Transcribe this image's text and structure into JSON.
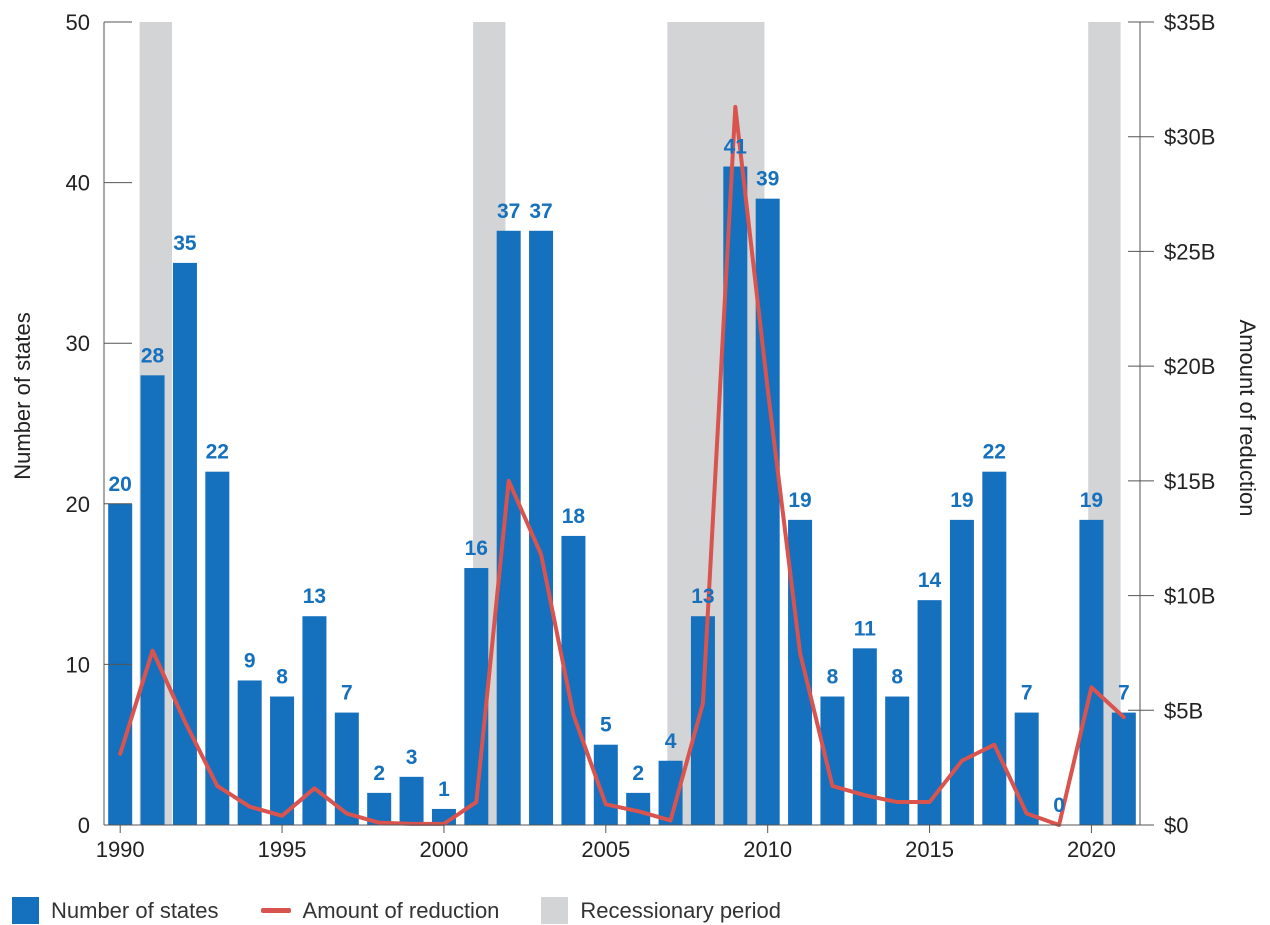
{
  "colors": {
    "bars": "#1570bd",
    "line": "#d9534f",
    "recession": "#d3d4d6",
    "label": "#1570bd"
  },
  "legend": {
    "items": [
      {
        "label": "Number of states",
        "kind": "box",
        "color": "#1570bd"
      },
      {
        "label": "Amount of reduction",
        "kind": "line",
        "color": "#d9534f"
      },
      {
        "label": "Recessionary period",
        "kind": "box",
        "color": "#d3d4d6"
      }
    ]
  },
  "chart_data": {
    "type": "bar",
    "title": "",
    "xlabel": "",
    "ylabel": "Number of states",
    "y2label": "Amount of reduction",
    "x": [
      1990,
      1991,
      1992,
      1993,
      1994,
      1995,
      1996,
      1997,
      1998,
      1999,
      2000,
      2001,
      2002,
      2003,
      2004,
      2005,
      2006,
      2007,
      2008,
      2009,
      2010,
      2011,
      2012,
      2013,
      2014,
      2015,
      2016,
      2017,
      2018,
      2019,
      2020,
      2021
    ],
    "xticks": [
      1990,
      1995,
      2000,
      2005,
      2010,
      2015,
      2020
    ],
    "ylim": [
      0,
      50
    ],
    "yticks": [
      0,
      10,
      20,
      30,
      40,
      50
    ],
    "y2lim": [
      0,
      35
    ],
    "y2ticks": [
      0,
      5,
      10,
      15,
      20,
      25,
      30,
      35
    ],
    "y2ticklabels": [
      "$0",
      "$5B",
      "$10B",
      "$15B",
      "$20B",
      "$25B",
      "$30B",
      "$35B"
    ],
    "recessions": [
      [
        1990.6,
        1991.6
      ],
      [
        2000.9,
        2001.9
      ],
      [
        2006.9,
        2009.9
      ],
      [
        2019.9,
        2020.9
      ]
    ],
    "series": [
      {
        "name": "Number of states",
        "type": "bar",
        "axis": "left",
        "values": [
          20,
          28,
          35,
          22,
          9,
          8,
          13,
          7,
          2,
          3,
          1,
          16,
          37,
          37,
          18,
          5,
          2,
          4,
          13,
          41,
          39,
          19,
          8,
          11,
          8,
          14,
          19,
          22,
          7,
          0,
          19,
          7
        ]
      },
      {
        "name": "Amount of reduction",
        "type": "line",
        "axis": "right",
        "values": [
          3.1,
          7.6,
          4.5,
          1.7,
          0.8,
          0.4,
          1.6,
          0.5,
          0.1,
          0.05,
          0.05,
          1.0,
          15.0,
          11.8,
          4.8,
          0.9,
          0.6,
          0.2,
          5.3,
          31.3,
          19.0,
          7.5,
          1.7,
          1.3,
          1.0,
          1.0,
          2.8,
          3.5,
          0.5,
          0.0,
          6.0,
          4.7
        ]
      }
    ]
  }
}
